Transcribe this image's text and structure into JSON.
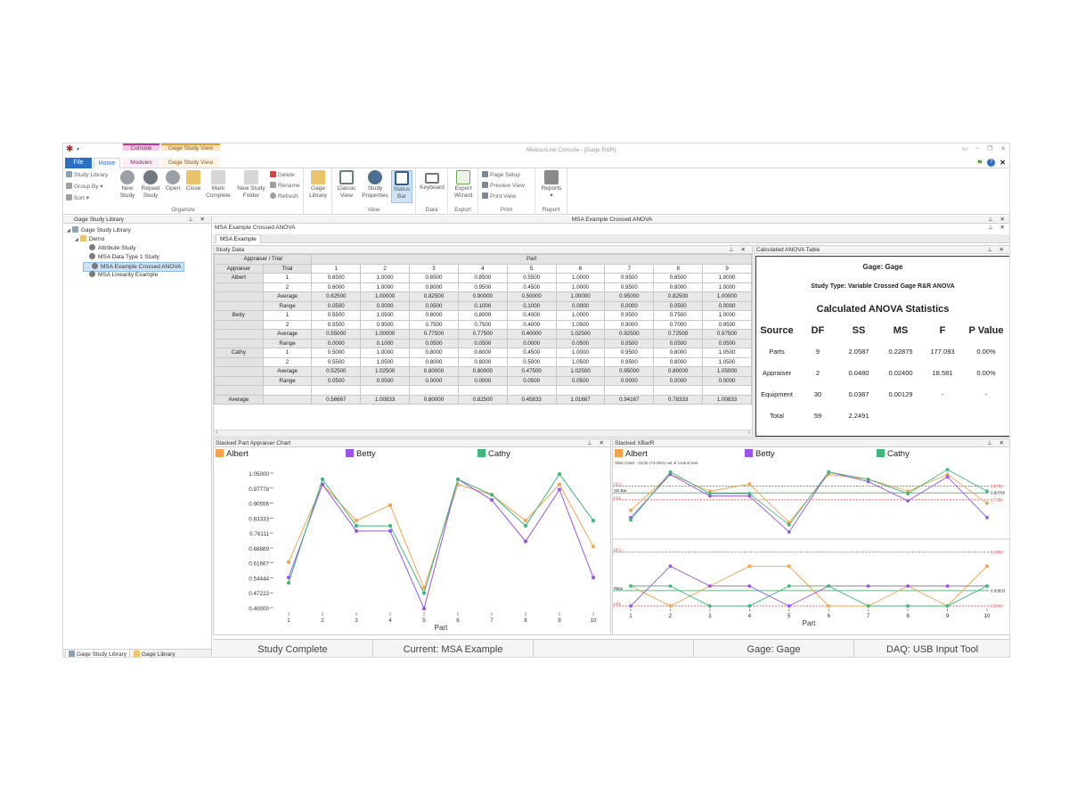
{
  "window": {
    "title": "MeasurLink Console - [Gage R&R]"
  },
  "context_tabs": {
    "console": "Console",
    "gage_study_view": "Gage Study View"
  },
  "tabs": {
    "file": "File",
    "home": "Home",
    "modules": "Modules",
    "gage_study_view": "Gage Study View"
  },
  "ribbon": {
    "organize": {
      "label": "Organize",
      "study_library": "Study Library",
      "group_by": "Group By",
      "sort": "Sort",
      "new_study": [
        "New",
        "Study"
      ],
      "repeat_study": [
        "Repeat",
        "Study"
      ],
      "open": "Open",
      "close": "Close",
      "mark_complete": [
        "Mark",
        "Complete"
      ],
      "new_study_folder": [
        "New Study",
        "Folder"
      ],
      "delete": "Delete",
      "rename": "Rename",
      "refresh": "Refresh",
      "gage_library": [
        "Gage",
        "Library"
      ]
    },
    "view": {
      "label": "View",
      "classic_view": [
        "Classic",
        "View"
      ],
      "study_properties": [
        "Study",
        "Properties"
      ],
      "status_bar": [
        "Status",
        "Bar"
      ]
    },
    "data": {
      "label": "Data",
      "keyboard": "Keyboard"
    },
    "export": {
      "label": "Export",
      "export_wizard": [
        "Export",
        "Wizard"
      ]
    },
    "print": {
      "label": "Print",
      "page_setup": "Page Setup",
      "preview_view": "Preview View",
      "print_view": "Print View"
    },
    "report": {
      "label": "Report",
      "reports": "Reports"
    }
  },
  "left_panel": {
    "title": "Gage Study Library",
    "tree": [
      {
        "label": "Gage Study Library",
        "level": 0
      },
      {
        "label": "Demo",
        "level": 1
      },
      {
        "label": "Attribute Study",
        "level": 2
      },
      {
        "label": "MSA Data Type 1 Study",
        "level": 2
      },
      {
        "label": "MSA Example Crossed ANOVA",
        "level": 2,
        "selected": true
      },
      {
        "label": "MSA Linearity Example",
        "level": 2
      }
    ],
    "bottom_tabs": [
      "Gage Study Library",
      "Gage Library"
    ]
  },
  "document": {
    "header": "MSA Example Crossed ANOVA",
    "sub_header": "MSA Example Crossed ANOVA",
    "tab": "MSA Example"
  },
  "study_data": {
    "title": "Study Data",
    "headers": {
      "appraiser_trial": "Appraiser / Trial",
      "appraiser": "Appraiser",
      "trial": "Trial",
      "part": "Part"
    },
    "parts": [
      "1",
      "2",
      "3",
      "4",
      "5",
      "6",
      "7",
      "8",
      "9"
    ],
    "rows": [
      {
        "appraiser": "Albert",
        "trial": "1",
        "values": [
          "0.6500",
          "1.0000",
          "0.8500",
          "0.8500",
          "0.5500",
          "1.0000",
          "0.9500",
          "0.8500",
          "1.0000"
        ]
      },
      {
        "appraiser": "",
        "trial": "2",
        "values": [
          "0.6000",
          "1.0000",
          "0.8000",
          "0.9500",
          "0.4500",
          "1.0000",
          "0.9500",
          "0.8000",
          "1.0000"
        ]
      },
      {
        "appraiser": "",
        "trial": "Average",
        "values": [
          "0.62500",
          "1.00000",
          "0.82500",
          "0.90000",
          "0.50000",
          "1.00000",
          "0.95000",
          "0.82500",
          "1.00000"
        ],
        "avg": true
      },
      {
        "appraiser": "",
        "trial": "Range",
        "values": [
          "0.0500",
          "0.0000",
          "0.0500",
          "0.1000",
          "0.1000",
          "0.0000",
          "0.0000",
          "0.0500",
          "0.0000"
        ],
        "avg": true
      },
      {
        "appraiser": "Betty",
        "trial": "1",
        "values": [
          "0.5500",
          "1.0500",
          "0.8000",
          "0.8000",
          "0.4000",
          "1.0000",
          "0.9500",
          "0.7500",
          "1.0000"
        ]
      },
      {
        "appraiser": "",
        "trial": "2",
        "values": [
          "0.5500",
          "0.9500",
          "0.7500",
          "0.7500",
          "0.4000",
          "1.0500",
          "0.9000",
          "0.7000",
          "0.9500"
        ]
      },
      {
        "appraiser": "",
        "trial": "Average",
        "values": [
          "0.55000",
          "1.00000",
          "0.77500",
          "0.77500",
          "0.40000",
          "1.02500",
          "0.92500",
          "0.72500",
          "0.97500"
        ],
        "avg": true
      },
      {
        "appraiser": "",
        "trial": "Range",
        "values": [
          "0.0000",
          "0.1000",
          "0.0500",
          "0.0500",
          "0.0000",
          "0.0500",
          "0.0500",
          "0.0500",
          "0.0500"
        ],
        "avg": true
      },
      {
        "appraiser": "Cathy",
        "trial": "1",
        "values": [
          "0.5000",
          "1.0000",
          "0.8000",
          "0.8000",
          "0.4500",
          "1.0000",
          "0.9500",
          "0.8000",
          "1.0500"
        ]
      },
      {
        "appraiser": "",
        "trial": "2",
        "values": [
          "0.5500",
          "1.0500",
          "0.8000",
          "0.8000",
          "0.5000",
          "1.0500",
          "0.9500",
          "0.8000",
          "1.0500"
        ]
      },
      {
        "appraiser": "",
        "trial": "Average",
        "values": [
          "0.52500",
          "1.02500",
          "0.80000",
          "0.80000",
          "0.47500",
          "1.02500",
          "0.95000",
          "0.80000",
          "1.05000"
        ],
        "avg": true
      },
      {
        "appraiser": "",
        "trial": "Range",
        "values": [
          "0.0500",
          "0.0500",
          "0.0000",
          "0.0000",
          "0.0500",
          "0.0500",
          "0.0000",
          "0.0000",
          "0.0000"
        ],
        "avg": true
      },
      {
        "appraiser": "",
        "trial": "",
        "values": [
          "",
          "",
          "",
          "",
          "",
          "",
          "",
          "",
          ""
        ]
      },
      {
        "appraiser": "Average",
        "trial": "",
        "values": [
          "0.56667",
          "1.00833",
          "0.80000",
          "0.82500",
          "0.45833",
          "1.01667",
          "0.94167",
          "0.78333",
          "1.00833"
        ],
        "avg": true
      }
    ]
  },
  "anova": {
    "title": "Calculated ANOVA Table",
    "gage_line": "Gage: Gage",
    "study_type_line": "Study Type: Variable Crossed Gage R&R ANOVA",
    "heading": "Calculated ANOVA Statistics",
    "columns": [
      "Source",
      "DF",
      "SS",
      "MS",
      "F",
      "P Value"
    ],
    "rows": [
      [
        "Parts",
        "9",
        "2.0587",
        "0.22875",
        "177.093",
        "0.00%"
      ],
      [
        "Appraiser",
        "2",
        "0.0480",
        "0.02400",
        "18.581",
        "0.00%"
      ],
      [
        "Equipment",
        "30",
        "0.0387",
        "0.00129",
        "-",
        "-"
      ],
      [
        "Total",
        "59",
        "2.2491",
        "",
        "",
        ""
      ]
    ]
  },
  "colors": {
    "albert": "#f4a24f",
    "betty": "#9a55e8",
    "cathy": "#3db87a",
    "limit": "#e03030",
    "accent": "#2b6fc5"
  },
  "stacked_chart": {
    "title": "Stacked Part Appraiser Chart",
    "legend": [
      "Albert",
      "Betty",
      "Cathy"
    ],
    "xlabel": "Part",
    "yticks": [
      "1.05000",
      "0.97778",
      "0.90556",
      "0.83333",
      "0.76111",
      "0.68889",
      "0.61667",
      "0.54444",
      "0.47222",
      "0.40000"
    ]
  },
  "xbar_chart": {
    "title": "Stacked XBarR",
    "legend": [
      "Albert",
      "Betty",
      "Cathy"
    ],
    "xlabel": "Part",
    "top_note": "XBar Chart - 22/30 (73.33%) out of control limit",
    "ucl_label": "UCL",
    "xbar_label": "XD Bar",
    "lcl_label": "LCL",
    "ucl_value": "0.8794",
    "xbar_value": "0.80750",
    "lcl_value": "0.7356",
    "r_ucl_label": "UCL",
    "rbar_label": "RBar",
    "r_lcl_label": "LCL",
    "r_ucl_value": "0.1353",
    "rbar_value": "0.03833",
    "r_lcl_value": "0.0000"
  },
  "chart_data": [
    {
      "type": "line",
      "title": "Stacked Part Appraiser Chart",
      "xlabel": "Part",
      "x": [
        1,
        2,
        3,
        4,
        5,
        6,
        7,
        8,
        9,
        10
      ],
      "ylim": [
        0.4,
        1.05
      ],
      "series": [
        {
          "name": "Albert",
          "values": [
            0.625,
            1.0,
            0.825,
            0.9,
            0.5,
            1.0,
            0.95,
            0.825,
            1.0,
            0.7
          ]
        },
        {
          "name": "Betty",
          "values": [
            0.55,
            1.0,
            0.775,
            0.775,
            0.4,
            1.025,
            0.925,
            0.725,
            0.975,
            0.55
          ]
        },
        {
          "name": "Cathy",
          "values": [
            0.525,
            1.025,
            0.8,
            0.8,
            0.475,
            1.025,
            0.95,
            0.8,
            1.05,
            0.825
          ]
        }
      ]
    },
    {
      "type": "line",
      "title": "Stacked XBarR",
      "xlabel": "Part",
      "x": [
        1,
        2,
        3,
        4,
        5,
        6,
        7,
        8,
        9,
        10
      ],
      "xbar_limits": {
        "ucl": 0.8794,
        "center": 0.8075,
        "lcl": 0.7356
      },
      "range_limits": {
        "ucl": 0.1353,
        "center": 0.03833,
        "lcl": 0.0
      },
      "xbar_series": [
        {
          "name": "Albert",
          "values": [
            0.625,
            1.0,
            0.825,
            0.9,
            0.5,
            1.0,
            0.95,
            0.825,
            1.0,
            0.7
          ]
        },
        {
          "name": "Betty",
          "values": [
            0.55,
            1.0,
            0.775,
            0.775,
            0.4,
            1.025,
            0.925,
            0.725,
            0.975,
            0.55
          ]
        },
        {
          "name": "Cathy",
          "values": [
            0.525,
            1.025,
            0.8,
            0.8,
            0.475,
            1.025,
            0.95,
            0.8,
            1.05,
            0.825
          ]
        }
      ],
      "range_series": [
        {
          "name": "Albert",
          "values": [
            0.05,
            0.0,
            0.05,
            0.1,
            0.1,
            0.0,
            0.0,
            0.05,
            0.0,
            0.1
          ]
        },
        {
          "name": "Betty",
          "values": [
            0.0,
            0.1,
            0.05,
            0.05,
            0.0,
            0.05,
            0.05,
            0.05,
            0.05,
            0.05
          ]
        },
        {
          "name": "Cathy",
          "values": [
            0.05,
            0.05,
            0.0,
            0.0,
            0.05,
            0.05,
            0.0,
            0.0,
            0.0,
            0.05
          ]
        }
      ]
    }
  ],
  "status_bar": [
    "Study Complete",
    "Current: MSA Example",
    "",
    "Gage: Gage",
    "DAQ: USB Input Tool"
  ]
}
